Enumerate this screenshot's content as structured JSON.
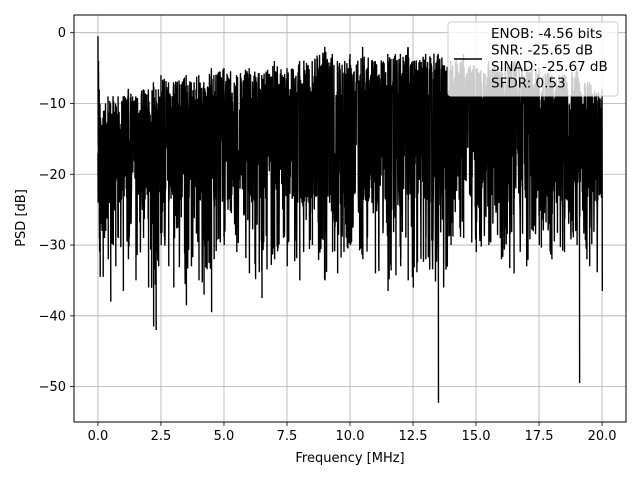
{
  "chart_data": {
    "type": "line",
    "title": "",
    "xlabel": "Frequency [MHz]",
    "ylabel": "PSD [dB]",
    "xlim": [
      -0.95,
      20.95
    ],
    "ylim": [
      -55,
      2.5
    ],
    "xticks": [
      0.0,
      2.5,
      5.0,
      7.5,
      10.0,
      12.5,
      15.0,
      17.5,
      20.0
    ],
    "xtick_labels": [
      "0.0",
      "2.5",
      "5.0",
      "7.5",
      "10.0",
      "12.5",
      "15.0",
      "17.5",
      "20.0"
    ],
    "yticks": [
      0,
      -10,
      -20,
      -30,
      -40,
      -50
    ],
    "ytick_labels": [
      "0",
      "−10",
      "−20",
      "−30",
      "−40",
      "−50"
    ],
    "grid": true,
    "legend_position": "top-right",
    "line_color": "#000000",
    "series": [
      {
        "name": "ENOB: -4.56 bits\nSNR: -25.65 dB\nSINAD: -25.67 dB\nSFDR: 0.53",
        "description_note": "",
        "x": [
          0.0,
          0.02,
          0.05,
          0.08,
          0.1,
          0.15,
          0.2,
          0.25,
          0.3,
          0.4,
          0.5,
          0.6,
          0.7,
          0.8,
          1.0,
          1.2,
          1.5,
          1.8,
          2.0,
          2.2,
          2.3,
          2.4,
          2.5,
          2.8,
          3.0,
          3.5,
          3.7,
          4.0,
          4.2,
          4.5,
          4.6,
          5.0,
          5.5,
          6.0,
          6.5,
          7.0,
          7.5,
          8.0,
          8.5,
          9.0,
          9.3,
          9.5,
          10.0,
          10.5,
          11.0,
          11.5,
          12.0,
          12.3,
          12.5,
          13.0,
          13.5,
          14.0,
          14.5,
          15.0,
          15.5,
          16.0,
          16.5,
          17.0,
          17.5,
          18.0,
          18.5,
          19.0,
          19.1,
          19.5,
          20.0
        ],
        "y_upper": [
          -0.5,
          -4,
          -8,
          -10,
          -12,
          -13,
          -12,
          -11,
          -10,
          -9,
          -10,
          -9,
          -10,
          -9,
          -9,
          -8,
          -9,
          -8,
          -8,
          -7,
          -8,
          -8,
          -6,
          -7,
          -7,
          -6,
          -7,
          -6,
          -7,
          -5,
          -6,
          -5,
          -6,
          -5,
          -6,
          -4,
          -5,
          -4,
          -4,
          -2,
          -3,
          -4,
          -3,
          -2,
          -4,
          -3,
          -3,
          -2,
          -4,
          -3,
          -3,
          -4,
          -3,
          -5,
          -4,
          -5,
          -4,
          -5,
          -5,
          -6,
          -6,
          -5,
          -7,
          -7,
          -8
        ],
        "y_lower": [
          -16,
          -20,
          -29,
          -34.5,
          -27,
          -28,
          -34.5,
          -29,
          -28,
          -32,
          -38,
          -30,
          -33,
          -29,
          -36.5,
          -32,
          -35,
          -29,
          -36,
          -41.5,
          -42,
          -33,
          -30,
          -33,
          -36,
          -38.5,
          -33,
          -35,
          -37,
          -39.5,
          -32,
          -30,
          -31,
          -34,
          -37.5,
          -32,
          -33,
          -35,
          -30,
          -35,
          -31,
          -34,
          -30,
          -32,
          -34,
          -36.5,
          -33,
          -35,
          -36,
          -32,
          -52.3,
          -30,
          -29,
          -31,
          -30,
          -32,
          -34,
          -33,
          -30,
          -32,
          -31,
          -30,
          -49.5,
          -33,
          -36.5
        ]
      }
    ]
  }
}
